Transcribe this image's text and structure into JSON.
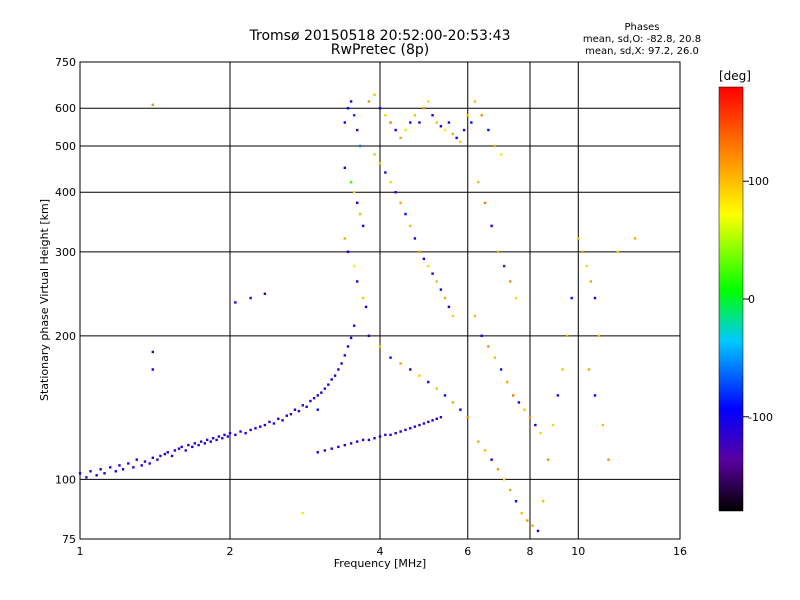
{
  "chart_data": {
    "type": "scatter",
    "title": "Tromsø 20150518 20:52:00-20:53:43",
    "subtitle": "RwPretec (8p)",
    "xlabel": "Frequency [MHz]",
    "ylabel": "Stationary phase Virtual Height [km]",
    "x_scale": "log",
    "y_scale": "log",
    "xlim": [
      1,
      16
    ],
    "ylim": [
      75,
      750
    ],
    "xticks": [
      1,
      2,
      4,
      6,
      8,
      10,
      16
    ],
    "yticks": [
      75,
      100,
      200,
      300,
      400,
      500,
      600,
      750
    ],
    "grid": true,
    "color_scale": {
      "label": "[deg]",
      "range": [
        -180,
        180
      ],
      "ticks": [
        100,
        0,
        -100
      ],
      "tick_labels": [
        "100",
        "0",
        "-100"
      ]
    },
    "stats": {
      "heading": "Phases",
      "line1": "mean, sd,O: -82.8, 20.8",
      "line2": "mean, sd,X:  97.2, 26.0"
    },
    "series": [
      {
        "trace": "lower_E_and_F_trace",
        "points": [
          [
            1.0,
            103,
            -110
          ],
          [
            1.03,
            101,
            -115
          ],
          [
            1.05,
            104,
            -108
          ],
          [
            1.08,
            102,
            -112
          ],
          [
            1.1,
            105,
            -105
          ],
          [
            1.12,
            103,
            -110
          ],
          [
            1.15,
            106,
            -118
          ],
          [
            1.18,
            104,
            -108
          ],
          [
            1.2,
            107,
            -112
          ],
          [
            1.22,
            105,
            -100
          ],
          [
            1.25,
            108,
            -115
          ],
          [
            1.28,
            106,
            -110
          ],
          [
            1.3,
            110,
            -108
          ],
          [
            1.33,
            107,
            -112
          ],
          [
            1.35,
            109,
            -118
          ],
          [
            1.38,
            108,
            -105
          ],
          [
            1.4,
            111,
            -110
          ],
          [
            1.43,
            110,
            -114
          ],
          [
            1.45,
            112,
            -120
          ],
          [
            1.48,
            113,
            -108
          ],
          [
            1.5,
            114,
            -110
          ],
          [
            1.53,
            112,
            -116
          ],
          [
            1.55,
            115,
            -104
          ],
          [
            1.58,
            116,
            -112
          ],
          [
            1.6,
            117,
            -110
          ],
          [
            1.63,
            115,
            -118
          ],
          [
            1.65,
            118,
            -106
          ],
          [
            1.68,
            117,
            -112
          ],
          [
            1.7,
            119,
            -110
          ],
          [
            1.73,
            118,
            -115
          ],
          [
            1.75,
            120,
            -108
          ],
          [
            1.78,
            119,
            -112
          ],
          [
            1.8,
            121,
            -118
          ],
          [
            1.83,
            120,
            -106
          ],
          [
            1.85,
            122,
            -110
          ],
          [
            1.88,
            121,
            -114
          ],
          [
            1.9,
            123,
            -108
          ],
          [
            1.93,
            122,
            -112
          ],
          [
            1.95,
            124,
            -118
          ],
          [
            1.98,
            123,
            -104
          ],
          [
            2.0,
            125,
            -110
          ],
          [
            2.05,
            124,
            -114
          ],
          [
            2.1,
            126,
            -108
          ],
          [
            2.15,
            125,
            -112
          ],
          [
            2.2,
            127,
            -118
          ],
          [
            2.25,
            128,
            -106
          ],
          [
            2.3,
            129,
            -110
          ],
          [
            2.35,
            130,
            -114
          ],
          [
            2.4,
            132,
            -108
          ],
          [
            2.45,
            131,
            -112
          ],
          [
            2.5,
            134,
            -118
          ],
          [
            2.55,
            133,
            -106
          ],
          [
            2.6,
            136,
            -110
          ],
          [
            2.65,
            137,
            -114
          ],
          [
            2.7,
            140,
            -108
          ],
          [
            2.75,
            139,
            -112
          ],
          [
            2.8,
            143,
            -118
          ],
          [
            2.85,
            142,
            -106
          ],
          [
            2.9,
            146,
            -110
          ],
          [
            2.95,
            148,
            -114
          ],
          [
            3.0,
            150,
            -108
          ],
          [
            3.05,
            152,
            -112
          ],
          [
            3.1,
            155,
            -118
          ],
          [
            3.15,
            158,
            -106
          ],
          [
            3.2,
            162,
            -110
          ],
          [
            3.25,
            165,
            -114
          ],
          [
            3.3,
            170,
            -108
          ],
          [
            3.35,
            175,
            -112
          ],
          [
            3.4,
            182,
            -118
          ],
          [
            3.45,
            190,
            -106
          ],
          [
            3.5,
            198,
            -110
          ],
          [
            3.55,
            210,
            -114
          ]
        ]
      },
      {
        "trace": "layer_118_trace",
        "points": [
          [
            3.0,
            114,
            -112
          ],
          [
            3.1,
            115,
            -108
          ],
          [
            3.2,
            116,
            -116
          ],
          [
            3.3,
            117,
            -110
          ],
          [
            3.4,
            118,
            -106
          ],
          [
            3.5,
            119,
            -114
          ],
          [
            3.6,
            120,
            -110
          ],
          [
            3.7,
            121,
            -118
          ],
          [
            3.8,
            121,
            -108
          ],
          [
            3.9,
            122,
            -112
          ],
          [
            4.0,
            123,
            -110
          ],
          [
            4.1,
            124,
            -116
          ],
          [
            4.2,
            124,
            -108
          ],
          [
            4.3,
            125,
            -112
          ],
          [
            4.4,
            126,
            -110
          ],
          [
            4.5,
            127,
            -114
          ],
          [
            4.6,
            128,
            -106
          ],
          [
            4.7,
            129,
            -112
          ],
          [
            4.8,
            130,
            -110
          ],
          [
            4.9,
            131,
            -118
          ],
          [
            5.0,
            132,
            -108
          ],
          [
            5.1,
            133,
            -112
          ],
          [
            5.2,
            134,
            -110
          ],
          [
            5.3,
            135,
            -116
          ]
        ]
      },
      {
        "trace": "F_region_cloud",
        "points": [
          [
            3.4,
            560,
            -100
          ],
          [
            3.45,
            600,
            -95
          ],
          [
            3.5,
            620,
            -110
          ],
          [
            3.55,
            580,
            -80
          ],
          [
            3.6,
            540,
            -120
          ],
          [
            3.65,
            500,
            -60
          ],
          [
            3.4,
            450,
            -105
          ],
          [
            3.5,
            420,
            20
          ],
          [
            3.55,
            400,
            90
          ],
          [
            3.6,
            380,
            -110
          ],
          [
            3.65,
            360,
            100
          ],
          [
            3.7,
            340,
            -90
          ],
          [
            3.4,
            320,
            110
          ],
          [
            3.45,
            300,
            -100
          ],
          [
            3.55,
            280,
            80
          ],
          [
            3.6,
            260,
            -115
          ],
          [
            3.7,
            240,
            95
          ],
          [
            3.75,
            230,
            -100
          ],
          [
            3.8,
            620,
            120
          ],
          [
            3.9,
            640,
            100
          ],
          [
            4.0,
            600,
            -110
          ],
          [
            4.1,
            580,
            90
          ],
          [
            4.2,
            560,
            130
          ],
          [
            4.3,
            540,
            -100
          ],
          [
            4.4,
            520,
            110
          ],
          [
            4.5,
            540,
            60
          ],
          [
            4.6,
            560,
            -90
          ],
          [
            4.7,
            580,
            100
          ],
          [
            4.8,
            560,
            -110
          ],
          [
            4.9,
            600,
            120
          ],
          [
            5.0,
            620,
            90
          ],
          [
            5.1,
            580,
            -100
          ],
          [
            5.2,
            560,
            100
          ],
          [
            5.3,
            550,
            -110
          ],
          [
            5.4,
            540,
            80
          ],
          [
            5.5,
            560,
            -90
          ],
          [
            5.6,
            530,
            110
          ],
          [
            5.7,
            520,
            -100
          ],
          [
            5.8,
            510,
            95
          ],
          [
            5.9,
            540,
            -110
          ],
          [
            6.0,
            580,
            100
          ],
          [
            6.1,
            560,
            -90
          ],
          [
            3.9,
            480,
            40
          ],
          [
            4.0,
            460,
            100
          ],
          [
            4.1,
            440,
            -110
          ],
          [
            4.2,
            420,
            90
          ],
          [
            4.3,
            400,
            -100
          ],
          [
            4.4,
            380,
            110
          ],
          [
            4.5,
            360,
            -90
          ],
          [
            4.6,
            340,
            100
          ],
          [
            4.7,
            320,
            -110
          ],
          [
            4.8,
            300,
            120
          ],
          [
            4.9,
            290,
            -100
          ],
          [
            5.0,
            280,
            90
          ],
          [
            5.1,
            270,
            -110
          ],
          [
            5.2,
            260,
            100
          ],
          [
            5.3,
            250,
            -90
          ],
          [
            5.4,
            240,
            110
          ],
          [
            5.5,
            230,
            -100
          ],
          [
            5.6,
            220,
            90
          ],
          [
            3.8,
            200,
            -110
          ],
          [
            4.0,
            190,
            100
          ],
          [
            4.2,
            180,
            -90
          ],
          [
            4.4,
            175,
            110
          ],
          [
            4.6,
            170,
            -100
          ],
          [
            4.8,
            165,
            95
          ],
          [
            5.0,
            160,
            -110
          ],
          [
            5.2,
            155,
            100
          ],
          [
            5.4,
            150,
            -90
          ],
          [
            5.6,
            145,
            110
          ],
          [
            5.8,
            140,
            -100
          ],
          [
            6.0,
            135,
            120
          ]
        ]
      },
      {
        "trace": "higher_frequency_scatter",
        "points": [
          [
            6.2,
            620,
            100
          ],
          [
            6.4,
            580,
            120
          ],
          [
            6.6,
            540,
            -90
          ],
          [
            6.8,
            500,
            110
          ],
          [
            7.0,
            480,
            60
          ],
          [
            6.3,
            420,
            100
          ],
          [
            6.5,
            380,
            130
          ],
          [
            6.7,
            340,
            -100
          ],
          [
            6.9,
            300,
            110
          ],
          [
            7.1,
            280,
            -80
          ],
          [
            7.3,
            260,
            120
          ],
          [
            7.5,
            240,
            90
          ],
          [
            6.2,
            220,
            100
          ],
          [
            6.4,
            200,
            -110
          ],
          [
            6.6,
            190,
            120
          ],
          [
            6.8,
            180,
            100
          ],
          [
            7.0,
            170,
            -90
          ],
          [
            7.2,
            160,
            110
          ],
          [
            7.4,
            150,
            130
          ],
          [
            7.6,
            145,
            -100
          ],
          [
            7.8,
            140,
            100
          ],
          [
            8.0,
            135,
            120
          ],
          [
            8.2,
            130,
            -110
          ],
          [
            8.4,
            125,
            90
          ],
          [
            6.3,
            120,
            110
          ],
          [
            6.5,
            115,
            100
          ],
          [
            6.7,
            110,
            -100
          ],
          [
            6.9,
            105,
            120
          ],
          [
            7.1,
            100,
            90
          ],
          [
            7.3,
            95,
            110
          ],
          [
            7.5,
            90,
            -90
          ],
          [
            7.7,
            85,
            100
          ],
          [
            7.9,
            82,
            120
          ],
          [
            8.1,
            80,
            110
          ],
          [
            8.3,
            78,
            -100
          ],
          [
            8.5,
            90,
            100
          ],
          [
            8.7,
            110,
            120
          ],
          [
            8.9,
            130,
            90
          ],
          [
            9.1,
            150,
            -110
          ],
          [
            9.3,
            170,
            100
          ],
          [
            9.5,
            200,
            110
          ],
          [
            9.7,
            240,
            -90
          ],
          [
            10.0,
            320,
            100
          ],
          [
            10.2,
            300,
            120
          ],
          [
            10.4,
            280,
            90
          ],
          [
            10.6,
            260,
            110
          ],
          [
            10.8,
            240,
            -100
          ],
          [
            11.0,
            200,
            100
          ],
          [
            10.5,
            170,
            110
          ],
          [
            10.8,
            150,
            -90
          ],
          [
            11.2,
            130,
            100
          ],
          [
            11.5,
            110,
            120
          ],
          [
            12.0,
            300,
            90
          ],
          [
            13.0,
            320,
            110
          ]
        ]
      },
      {
        "trace": "isolated_points",
        "points": [
          [
            1.4,
            610,
            120
          ],
          [
            1.4,
            185,
            -110
          ],
          [
            1.4,
            170,
            -100
          ],
          [
            2.05,
            235,
            -110
          ],
          [
            2.2,
            240,
            -108
          ],
          [
            2.35,
            245,
            -115
          ],
          [
            2.8,
            85,
            60
          ],
          [
            3.0,
            140,
            -90
          ]
        ]
      }
    ]
  }
}
